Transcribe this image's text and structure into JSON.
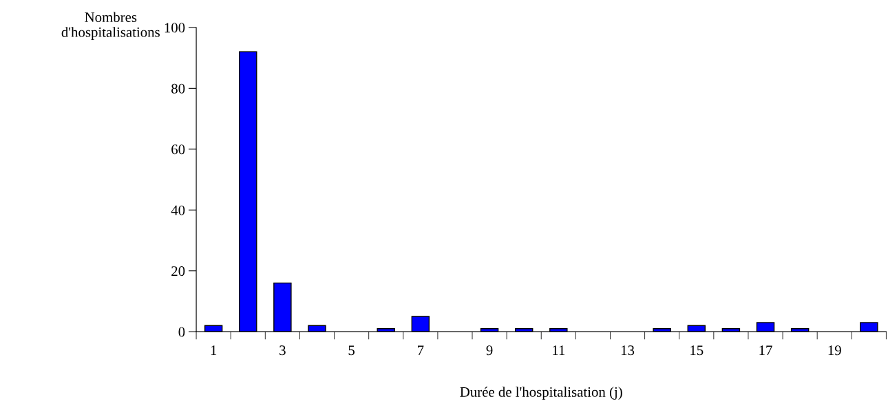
{
  "chart_data": {
    "type": "bar",
    "xlabel": "Durée de l'hospitalisation (j)",
    "ylabel": "Nombres\nd'hospitalisations",
    "categories": [
      "1",
      null,
      "3",
      null,
      "5",
      null,
      "7",
      null,
      "9",
      null,
      "11",
      null,
      "13",
      null,
      "15",
      null,
      "17",
      null,
      "19",
      null
    ],
    "values": [
      2,
      92,
      16,
      2,
      0,
      1,
      5,
      0,
      1,
      1,
      1,
      0,
      0,
      1,
      2,
      1,
      3,
      1,
      0,
      3
    ],
    "color": "#0000ff",
    "ylim": [
      0,
      100
    ],
    "yticks": [
      0,
      20,
      40,
      60,
      80,
      100
    ],
    "grid": false,
    "legend": false
  }
}
